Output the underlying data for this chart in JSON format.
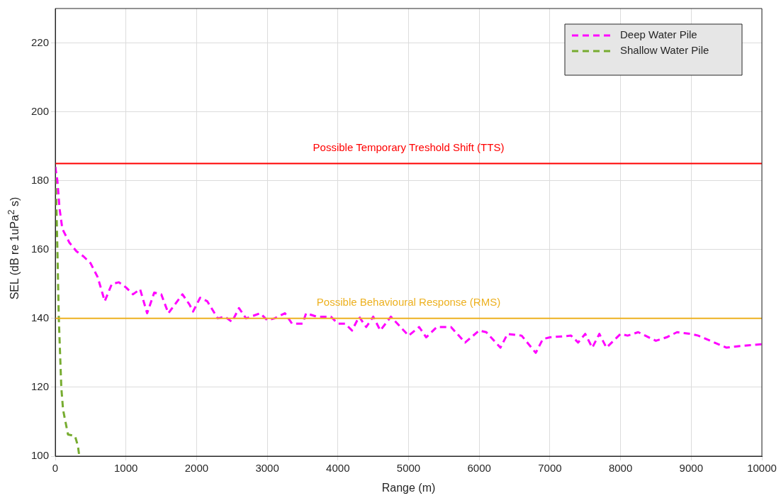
{
  "chart_data": {
    "type": "line",
    "xlabel": "Range (m)",
    "ylabel": "SEL (dB re 1uPa$^{2}$ s)",
    "xlim": [
      0,
      10000
    ],
    "xticks": [
      0,
      1000,
      2000,
      3000,
      4000,
      5000,
      6000,
      7000,
      8000,
      9000,
      10000
    ],
    "ylim": [
      100,
      230
    ],
    "yticks": [
      100,
      120,
      140,
      160,
      180,
      200,
      220
    ],
    "grid": true,
    "legend": "top right",
    "marker": "none",
    "line_style": "dashed",
    "series": [
      {
        "name": "Deep Water Pile",
        "color": "#ff00ff",
        "x": [
          0,
          30,
          60,
          100,
          200,
          300,
          400,
          500,
          600,
          700,
          800,
          900,
          1000,
          1100,
          1200,
          1300,
          1400,
          1500,
          1600,
          1800,
          1900,
          1950,
          2050,
          2150,
          2300,
          2400,
          2500,
          2600,
          2700,
          2900,
          3000,
          3100,
          3250,
          3350,
          3500,
          3550,
          3700,
          3800,
          3900,
          4000,
          4100,
          4200,
          4300,
          4400,
          4500,
          4600,
          4750,
          5000,
          5150,
          5250,
          5400,
          5600,
          5800,
          6000,
          6100,
          6300,
          6400,
          6600,
          6800,
          6900,
          7000,
          7300,
          7400,
          7500,
          7600,
          7700,
          7800,
          8000,
          8100,
          8250,
          8500,
          8650,
          8800,
          9000,
          9100,
          9500,
          9700,
          10000
        ],
        "values": [
          184,
          180,
          172,
          166,
          162,
          159.5,
          158,
          156,
          152,
          145,
          150,
          150.5,
          149,
          147,
          148.5,
          141.5,
          147.5,
          147,
          141.5,
          147,
          144,
          142,
          146,
          145,
          140,
          140.5,
          139,
          143,
          140,
          141.5,
          139.5,
          140,
          141.5,
          138.5,
          138.5,
          141.5,
          140.5,
          140.5,
          140.5,
          138.5,
          138.5,
          136.5,
          140.5,
          137.5,
          140.5,
          136.5,
          140.5,
          135,
          137.5,
          134.5,
          137.5,
          137.5,
          133,
          136.5,
          136,
          131.5,
          135.5,
          135,
          130,
          134,
          134.5,
          135,
          133,
          135.5,
          131.5,
          135.5,
          131.5,
          135.5,
          135,
          136,
          133.5,
          134.5,
          136,
          135.5,
          135,
          131.5,
          132,
          132.5
        ]
      },
      {
        "name": "Shallow Water Pile",
        "color": "#77ac30",
        "x": [
          0,
          10,
          30,
          50,
          85,
          110,
          180,
          280,
          320,
          340
        ],
        "values": [
          184,
          178,
          160,
          140,
          120,
          113.5,
          106.3,
          105.8,
          103,
          100
        ]
      }
    ],
    "ref_lines": [
      {
        "axis": "y",
        "value": 185,
        "label": "Possible Temporary Treshold Shift (TTS)",
        "color": "#ff0000"
      },
      {
        "axis": "y",
        "value": 140,
        "label": "Possible Behavioural Response (RMS)",
        "color": "#edb120"
      }
    ]
  }
}
